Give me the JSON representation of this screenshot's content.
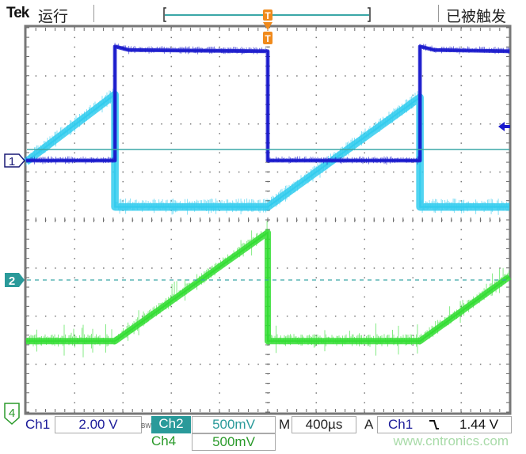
{
  "header": {
    "brand": "Tek",
    "run_state": "运行",
    "trigger_state": "已被触发"
  },
  "footer": {
    "ch1_label": "Ch1",
    "ch1_scale": "2.00 V",
    "bw_label": "BW",
    "ch2_label": "Ch2",
    "ch2_scale": "500mV",
    "ch4_label": "Ch4",
    "ch4_scale": "500mV",
    "time_label": "M",
    "time_scale": "400µs",
    "trigger_label": "A",
    "trigger_source": "Ch1",
    "trigger_slope_icon": "falling-edge",
    "trigger_level": "1.44 V",
    "watermark": "www.cntronics.com"
  },
  "markers": {
    "ch1": "1",
    "ch2": "2",
    "ch4": "4",
    "trigger": "T"
  },
  "colors": {
    "ch1": "#1a1acc",
    "ch2": "#33ccee",
    "ch4": "#33dd33",
    "accent": "#2a9a9a",
    "trigger": "#f08a1c"
  },
  "chart_data": {
    "type": "line",
    "title": "",
    "xlabel": "",
    "ylabel": "",
    "time_per_div_us": 400,
    "xlim_us": [
      -2000,
      2000
    ],
    "grid": true,
    "divisions": {
      "horizontal": 10,
      "vertical": 8
    },
    "series": [
      {
        "name": "Ch1",
        "volts_per_div": 2.0,
        "points_us_v": [
          [
            -2000,
            0
          ],
          [
            -1265,
            0
          ],
          [
            -1265,
            4.75
          ],
          [
            -1150,
            4.6
          ],
          [
            0,
            4.55
          ],
          [
            0,
            0
          ],
          [
            1260,
            0
          ],
          [
            1260,
            4.75
          ],
          [
            1380,
            4.6
          ],
          [
            2000,
            4.55
          ]
        ]
      },
      {
        "name": "Ch2",
        "volts_per_div": 0.5,
        "points_us_v": [
          [
            -2000,
            1.23
          ],
          [
            -1265,
            1.93
          ],
          [
            -1265,
            0.76
          ],
          [
            0,
            0.76
          ],
          [
            1260,
            1.9
          ],
          [
            1260,
            0.76
          ],
          [
            2000,
            0.76
          ]
        ]
      },
      {
        "name": "Ch4",
        "volts_per_div": 0.5,
        "points_us_v": [
          [
            -2000,
            0.73
          ],
          [
            -1265,
            0.73
          ],
          [
            0,
            1.86
          ],
          [
            0,
            0.73
          ],
          [
            1260,
            0.73
          ],
          [
            2000,
            1.4
          ]
        ]
      }
    ],
    "trigger": {
      "source": "Ch1",
      "slope": "falling",
      "level_v": 1.44,
      "position_us": 0
    }
  }
}
